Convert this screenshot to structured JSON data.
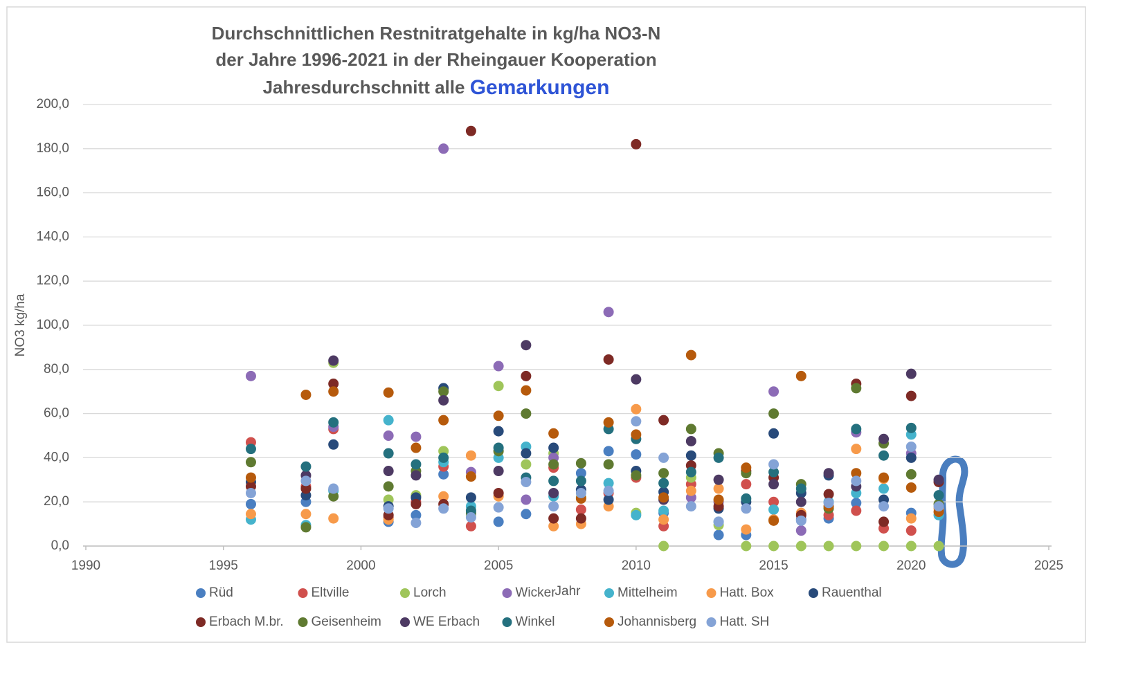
{
  "chart_data": {
    "type": "scatter",
    "title_lines": [
      "Durchschnittlichen Restnitratgehalte in kg/ha NO3-N",
      "der Jahre 1996-2021 in der Rheingauer Kooperation"
    ],
    "title_last_line": [
      "Jahresdurchschnitt alle",
      "Gemarkungen"
    ],
    "title_highlight_color": "#2e54d6",
    "x_label": "Jahr",
    "y_label": "NO3 kg/ha",
    "x": [
      1996,
      1998,
      1999,
      2001,
      2002,
      2003,
      2004,
      2005,
      2006,
      2007,
      2008,
      2009,
      2010,
      2011,
      2012,
      2013,
      2014,
      2015,
      2016,
      2017,
      2018,
      2019,
      2020,
      2021
    ],
    "xlim": [
      1990,
      2025
    ],
    "xticks": [
      1990,
      1995,
      2000,
      2005,
      2010,
      2015,
      2020,
      2025
    ],
    "ylim": [
      0,
      200
    ],
    "yticks": [
      {
        "value": 0,
        "label": "0,0"
      },
      {
        "value": 20,
        "label": "20,0"
      },
      {
        "value": 40,
        "label": "40,0"
      },
      {
        "value": 60,
        "label": "60,0"
      },
      {
        "value": 80,
        "label": "80,0"
      },
      {
        "value": 100,
        "label": "100,0"
      },
      {
        "value": 120,
        "label": "120,0"
      },
      {
        "value": 140,
        "label": "140,0"
      },
      {
        "value": 160,
        "label": "160,0"
      },
      {
        "value": 180,
        "label": "180,0"
      },
      {
        "value": 200,
        "label": "200,0"
      }
    ],
    "grid": true,
    "legend_position": "bottom",
    "series": [
      {
        "name": "Rüd",
        "color": "#4a7fc1",
        "values": [
          19,
          20,
          25.5,
          11,
          14,
          32.5,
          null,
          11,
          14.5,
          null,
          33,
          43,
          41.5,
          15,
          null,
          5,
          5,
          null,
          12,
          12.5,
          19.5,
          null,
          15,
          null
        ]
      },
      {
        "name": "Eltville",
        "color": "#d0504d",
        "values": [
          47,
          27,
          53,
          13,
          20,
          36,
          9,
          null,
          null,
          35.5,
          16.5,
          24,
          31,
          9,
          28,
          null,
          28,
          20,
          null,
          14,
          16,
          8,
          7,
          null
        ]
      },
      {
        "name": "Lorch",
        "color": "#9fc55a",
        "values": [
          null,
          null,
          83,
          21,
          23,
          43,
          14,
          72.5,
          37,
          42,
          22,
          null,
          15,
          0,
          31,
          9.5,
          0,
          0,
          0,
          0,
          0,
          0,
          0,
          0
        ]
      },
      {
        "name": "Wicker",
        "color": "#8c6bb6",
        "values": [
          77,
          null,
          54,
          50,
          49.5,
          180,
          33.5,
          81.5,
          21,
          40,
          null,
          106,
          null,
          null,
          22,
          20,
          null,
          70,
          7,
          null,
          51.5,
          null,
          42,
          null
        ]
      },
      {
        "name": "Mittelheim",
        "color": "#45b3cc",
        "values": [
          12,
          9.5,
          25,
          57,
          null,
          38,
          18,
          40,
          45,
          22.5,
          null,
          28.5,
          14,
          16,
          null,
          11,
          null,
          16.5,
          null,
          20,
          24,
          26,
          50.5,
          14
        ]
      },
      {
        "name": "Hatt. Box",
        "color": "#f79a4a",
        "values": [
          14.5,
          14.5,
          12.5,
          12,
          null,
          22.5,
          41,
          22.5,
          null,
          9,
          10,
          18,
          62,
          12,
          25,
          26,
          7.5,
          12,
          15,
          null,
          44,
          30.5,
          12.5,
          17
        ]
      },
      {
        "name": "Rauenthal",
        "color": "#284a7a",
        "values": [
          29,
          23,
          46,
          18,
          22,
          71.5,
          22,
          52,
          42,
          44.5,
          25.5,
          21,
          34,
          24.5,
          41,
          17,
          20,
          51,
          24,
          32,
          null,
          21,
          40,
          null
        ]
      },
      {
        "name": "Erbach M.br.",
        "color": "#7e2a25",
        "values": [
          27,
          26,
          73.5,
          14,
          19,
          19,
          188,
          24,
          77,
          12.5,
          12.5,
          84.5,
          182,
          57,
          36.5,
          18,
          34,
          31,
          14,
          23.5,
          73.5,
          11,
          68,
          29
        ]
      },
      {
        "name": "Geisenheim",
        "color": "#5f7a31",
        "values": [
          38,
          8.5,
          22.5,
          27,
          34,
          70,
          15,
          43,
          60,
          37,
          37.5,
          37,
          32,
          33,
          53,
          42,
          33,
          60,
          28,
          17,
          71.5,
          46.5,
          32.5,
          19
        ]
      },
      {
        "name": "WE Erbach",
        "color": "#4d3a63",
        "values": [
          null,
          32,
          84,
          34,
          32,
          66,
          null,
          34,
          91,
          24,
          null,
          null,
          75.5,
          21,
          47.5,
          30,
          null,
          28,
          20,
          33,
          27,
          48.5,
          78,
          30
        ]
      },
      {
        "name": "Winkel",
        "color": "#24707e",
        "values": [
          44,
          36,
          56,
          42,
          37,
          40,
          16,
          44.5,
          31,
          29.5,
          29.5,
          53,
          48.5,
          28.5,
          33.5,
          40,
          21.5,
          33.5,
          26,
          null,
          53,
          41,
          53.5,
          23
        ]
      },
      {
        "name": "Johannisberg",
        "color": "#b65a0c",
        "values": [
          31,
          68.5,
          70,
          69.5,
          44.5,
          57,
          31.5,
          59,
          70.5,
          51,
          21.5,
          56,
          50.5,
          22,
          86.5,
          21,
          35.5,
          11.5,
          77,
          18,
          33,
          31,
          26.5,
          15.5
        ]
      },
      {
        "name": "Hatt. SH",
        "color": "#84a3d6",
        "values": [
          24,
          29.5,
          26,
          17,
          10.5,
          17,
          13,
          17.5,
          29,
          18,
          24,
          25,
          56.5,
          40,
          18,
          11,
          17,
          37,
          11.5,
          19.5,
          29.5,
          18,
          45,
          18
        ]
      }
    ]
  }
}
